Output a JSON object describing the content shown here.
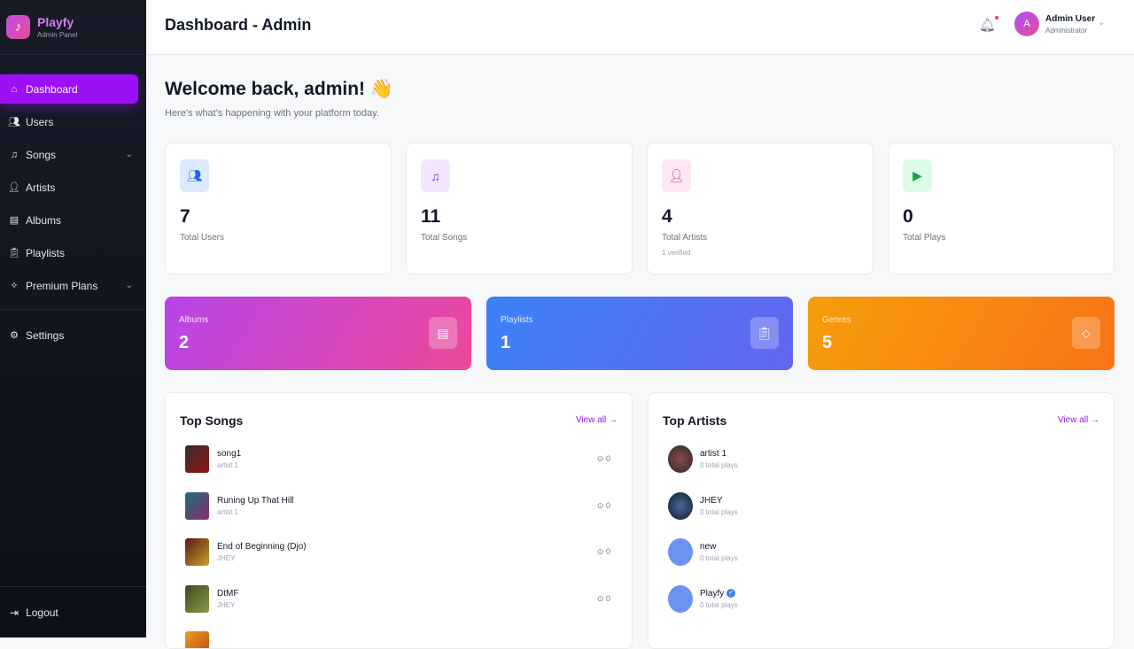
{
  "brand": {
    "name": "Playfy",
    "subtitle": "Admin Panel"
  },
  "sidebar": {
    "items": [
      {
        "label": "Dashboard",
        "icon": "home-icon",
        "active": true
      },
      {
        "label": "Users",
        "icon": "users-icon"
      },
      {
        "label": "Songs",
        "icon": "music-icon",
        "expandable": true
      },
      {
        "label": "Artists",
        "icon": "user-icon"
      },
      {
        "label": "Albums",
        "icon": "album-icon"
      },
      {
        "label": "Playlists",
        "icon": "clipboard-icon"
      },
      {
        "label": "Premium Plans",
        "icon": "sparkle-icon",
        "expandable": true
      }
    ],
    "settings": "Settings",
    "logout": "Logout"
  },
  "header": {
    "title": "Dashboard - Admin",
    "user": {
      "initial": "A",
      "name": "Admin User",
      "role": "Administrator"
    }
  },
  "welcome": {
    "title": "Welcome back, admin! 👋",
    "subtitle": "Here's what's happening with your platform today."
  },
  "stats": [
    {
      "value": "7",
      "label": "Total Users",
      "icon": "users-icon",
      "color": "#2563eb",
      "bg": "#dbeafe"
    },
    {
      "value": "11",
      "label": "Total Songs",
      "icon": "music-icon",
      "color": "#9333ea",
      "bg": "#f3e8ff"
    },
    {
      "value": "4",
      "label": "Total Artists",
      "note": "1 verified",
      "icon": "user-icon",
      "color": "#db2777",
      "bg": "#fce7f3"
    },
    {
      "value": "0",
      "label": "Total Plays",
      "icon": "play-icon",
      "color": "#16a34a",
      "bg": "#dcfce7"
    }
  ],
  "gradients": [
    {
      "label": "Albums",
      "value": "2",
      "icon": "album-icon",
      "colors": [
        "#b845e8",
        "#ec4899"
      ]
    },
    {
      "label": "Playlists",
      "value": "1",
      "icon": "clipboard-icon",
      "colors": [
        "#3b82f6",
        "#6366f1"
      ]
    },
    {
      "label": "Genres",
      "value": "5",
      "icon": "tag-icon",
      "colors": [
        "#f59e0b",
        "#f97316"
      ]
    }
  ],
  "top_songs": {
    "title": "Top Songs",
    "view_all": "View all →",
    "items": [
      {
        "title": "song1",
        "artist": "artist 1",
        "plays": "0",
        "thumb": [
          "#3b2a2a",
          "#8b1a1a"
        ]
      },
      {
        "title": "Runing Up That Hill",
        "artist": "artist 1",
        "plays": "0",
        "thumb": [
          "#1e6e7a",
          "#8a2a6e"
        ]
      },
      {
        "title": "End of Beginning (Djo)",
        "artist": "JHEY",
        "plays": "0",
        "thumb": [
          "#5a1a12",
          "#c8a02a"
        ]
      },
      {
        "title": "DtMF",
        "artist": "JHEY",
        "plays": "0",
        "thumb": [
          "#3e4a1a",
          "#8a9a4a"
        ]
      },
      {
        "title": "",
        "artist": "",
        "plays": "",
        "thumb": [
          "#e8a020",
          "#c04010"
        ]
      }
    ]
  },
  "top_artists": {
    "title": "Top Artists",
    "view_all": "View all →",
    "items": [
      {
        "name": "artist 1",
        "plays": "0 total plays",
        "avatar": [
          "#2a2a2a",
          "#8a4a4a"
        ]
      },
      {
        "name": "JHEY",
        "plays": "0 total plays",
        "avatar": [
          "#0d1a2e",
          "#4a6a9a"
        ]
      },
      {
        "name": "new",
        "plays": "0 total plays",
        "avatar": [
          "#6b93f0",
          "#6b93f0"
        ]
      },
      {
        "name": "Playfy",
        "plays": "0 total plays",
        "verified": true,
        "avatar": [
          "#6b93f0",
          "#6b93f0"
        ]
      }
    ]
  }
}
